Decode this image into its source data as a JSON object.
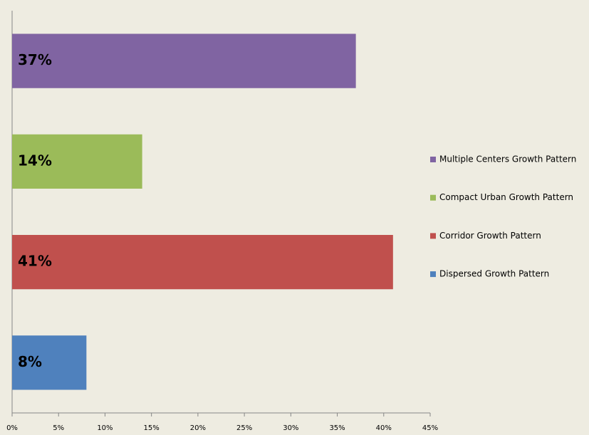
{
  "chart_data": {
    "type": "bar",
    "orientation": "horizontal",
    "series": [
      {
        "name": "Multiple Centers Growth Pattern",
        "color": "#8064a2",
        "values": [
          37
        ],
        "value_labels": [
          "37%"
        ]
      },
      {
        "name": "Compact Urban Growth Pattern",
        "color": "#9bbb59",
        "values": [
          14
        ],
        "value_labels": [
          "14%"
        ]
      },
      {
        "name": "Corridor Growth Pattern",
        "color": "#c0504d",
        "values": [
          41
        ],
        "value_labels": [
          "41%"
        ]
      },
      {
        "name": "Dispersed Growth Pattern",
        "color": "#4f81bd",
        "values": [
          8
        ],
        "value_labels": [
          "8%"
        ]
      }
    ],
    "xlim": [
      0,
      45
    ],
    "xticks": [
      {
        "value": 0,
        "label": "0%"
      },
      {
        "value": 5,
        "label": "5%"
      },
      {
        "value": 10,
        "label": "10%"
      },
      {
        "value": 15,
        "label": "15%"
      },
      {
        "value": 20,
        "label": "20%"
      },
      {
        "value": 25,
        "label": "25%"
      },
      {
        "value": 30,
        "label": "30%"
      },
      {
        "value": 35,
        "label": "35%"
      },
      {
        "value": 40,
        "label": "40%"
      },
      {
        "value": 45,
        "label": "45%"
      }
    ],
    "legend": "right"
  }
}
